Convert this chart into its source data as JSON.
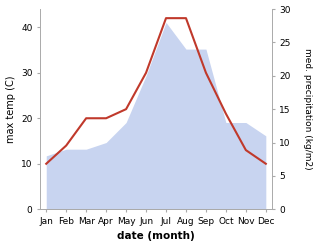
{
  "months": [
    "Jan",
    "Feb",
    "Mar",
    "Apr",
    "May",
    "Jun",
    "Jul",
    "Aug",
    "Sep",
    "Oct",
    "Nov",
    "Dec"
  ],
  "month_indices": [
    0,
    1,
    2,
    3,
    4,
    5,
    6,
    7,
    8,
    9,
    10,
    11
  ],
  "temperature": [
    10,
    14,
    20,
    20,
    22,
    30,
    42,
    42,
    30,
    21,
    13,
    10
  ],
  "precipitation": [
    8,
    9,
    9,
    10,
    13,
    20,
    28,
    24,
    24,
    13,
    13,
    11
  ],
  "temp_color": "#c0392b",
  "precip_color_fill": "#c8d4f0",
  "ylabel_left": "max temp (C)",
  "ylabel_right": "med. precipitation (kg/m2)",
  "xlabel": "date (month)",
  "ylim_left": [
    0,
    44
  ],
  "ylim_right": [
    0,
    30
  ],
  "yticks_left": [
    0,
    10,
    20,
    30,
    40
  ],
  "yticks_right": [
    0,
    5,
    10,
    15,
    20,
    25,
    30
  ],
  "bg_color": "#ffffff",
  "fig_width": 3.18,
  "fig_height": 2.47,
  "dpi": 100
}
